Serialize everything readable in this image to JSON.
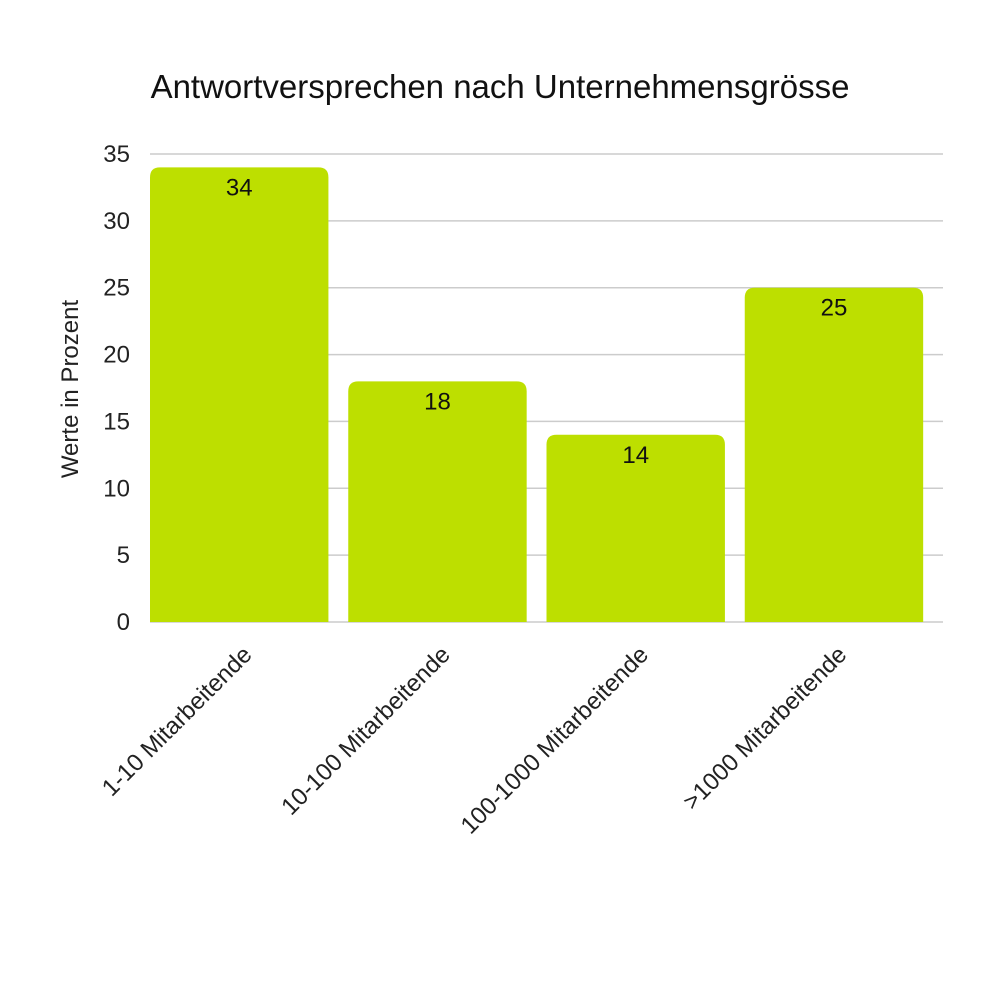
{
  "chart_data": {
    "type": "bar",
    "title": "Antwortversprechen nach Unternehmensgrösse",
    "ylabel": "Werte in Prozent",
    "xlabel": "",
    "categories": [
      "1-10 Mitarbeitende",
      "10-100 Mitarbeitende",
      "100-1000 Mitarbeitende",
      ">1000 Mitarbeitende"
    ],
    "values": [
      34,
      18,
      14,
      25
    ],
    "data_labels": [
      "34",
      "18",
      "14",
      "25"
    ],
    "ylim": [
      0,
      35
    ],
    "yticks": [
      "0",
      "5",
      "10",
      "15",
      "20",
      "25",
      "30",
      "35"
    ],
    "grid": true,
    "legend": "none",
    "bar_color": "#bddf00",
    "grid_color": "#cccccc"
  }
}
